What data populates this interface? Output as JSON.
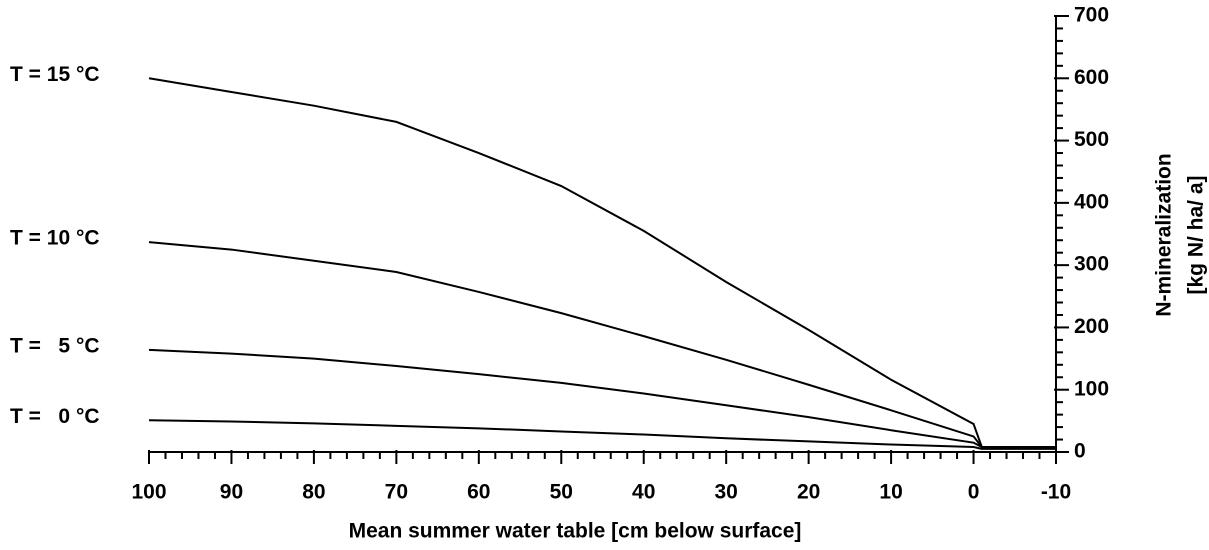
{
  "chart_data": {
    "type": "line",
    "xlabel": "Mean summer water table [cm below surface]",
    "ylabel": [
      "N-mineralization",
      "[kg N/ ha/ a]"
    ],
    "x": [
      100,
      90,
      80,
      70,
      60,
      50,
      40,
      30,
      20,
      10,
      0,
      -1,
      -10
    ],
    "series": [
      {
        "name": "T = 15 °C",
        "color": "#000000",
        "values": [
          600,
          578,
          556,
          530,
          480,
          427,
          355,
          273,
          196,
          116,
          45,
          8,
          8
        ]
      },
      {
        "name": "T = 10 °C",
        "color": "#000000",
        "values": [
          337,
          325,
          307,
          289,
          257,
          223,
          186,
          148,
          108,
          67,
          25,
          8,
          8
        ]
      },
      {
        "name": "T =   5 °C",
        "color": "#000000",
        "values": [
          164,
          158,
          150,
          138,
          125,
          111,
          94,
          75,
          56,
          35,
          15,
          8,
          8
        ]
      },
      {
        "name": "T =   0 °C",
        "color": "#000000",
        "values": [
          51,
          49,
          46,
          42,
          38,
          33,
          28,
          22,
          17,
          12,
          8,
          5,
          5
        ]
      }
    ],
    "xlim": [
      100,
      -10
    ],
    "xticks": [
      100,
      90,
      80,
      70,
      60,
      50,
      40,
      30,
      20,
      10,
      0,
      -10
    ],
    "ylim": [
      0,
      700
    ],
    "yticks": [
      0,
      100,
      200,
      300,
      400,
      500,
      600,
      700
    ]
  }
}
